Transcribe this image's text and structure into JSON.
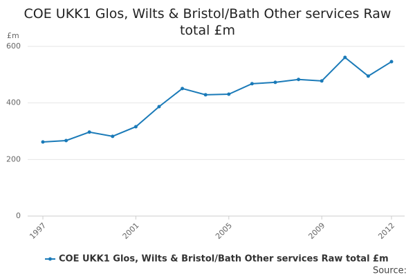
{
  "chart_data": {
    "type": "line",
    "title": "COE UKK1 Glos, Wilts & Bristol/Bath Other services Raw total £m",
    "y_label": "£m",
    "x": [
      1997,
      1998,
      1999,
      2000,
      2001,
      2002,
      2003,
      2004,
      2005,
      2006,
      2007,
      2008,
      2009,
      2010,
      2011,
      2012
    ],
    "series": [
      {
        "name": "COE UKK1 Glos, Wilts & Bristol/Bath Other services Raw total £m",
        "color": "#1a7ab8",
        "values": [
          262,
          267,
          297,
          282,
          316,
          387,
          451,
          429,
          431,
          468,
          473,
          483,
          478,
          561,
          495,
          546
        ]
      }
    ],
    "xlim": [
      1997,
      2012
    ],
    "xticks": [
      1997,
      2001,
      2005,
      2009,
      2012
    ],
    "ylim": [
      0,
      600
    ],
    "yticks": [
      0,
      200,
      400,
      600
    ],
    "grid": true,
    "legend": "bottom",
    "source": "Source:"
  }
}
